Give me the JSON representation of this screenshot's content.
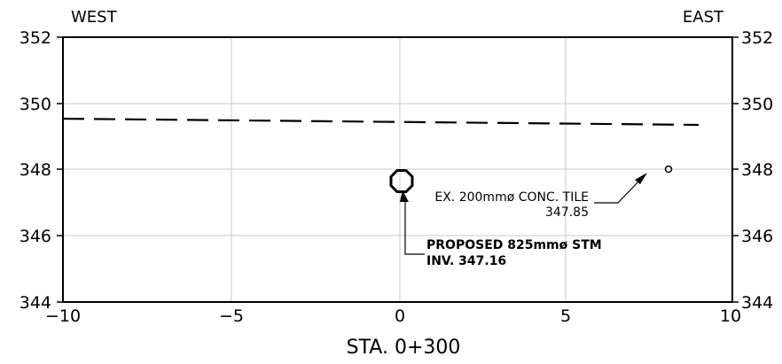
{
  "labels": {
    "west": "WEST",
    "east": "EAST",
    "station": "STA. 0+300"
  },
  "axes": {
    "x_ticks": [
      "−10",
      "−5",
      "0",
      "5",
      "10"
    ],
    "y_ticks_left": [
      "352",
      "350",
      "348",
      "346",
      "344"
    ],
    "y_ticks_right": [
      "352",
      "350",
      "348",
      "346",
      "344"
    ]
  },
  "annotations": {
    "existing_tile_line1": "EX. 200mmø CONC. TILE",
    "existing_tile_line2": "347.85",
    "proposed_pipe_line1": "PROPOSED 825mmø STM",
    "proposed_pipe_line2": "INV. 347.16"
  },
  "chart_data": {
    "type": "scatter",
    "xlim": [
      -10,
      10
    ],
    "ylim": [
      344,
      352
    ],
    "x_ticks": [
      -10,
      -5,
      0,
      5,
      10
    ],
    "y_ticks": [
      344,
      346,
      348,
      350,
      352
    ],
    "grid": true,
    "ground_profile": {
      "style": "dashed",
      "x": [
        -10,
        9
      ],
      "y": [
        349.45,
        349.25
      ]
    },
    "features": [
      {
        "label": "EX. 200mmø CONC. TILE",
        "x": 8.0,
        "y": 347.95,
        "size_mm": 200
      },
      {
        "label": "PROPOSED 825mmø STM",
        "x": 0.0,
        "y": 347.6,
        "size_mm": 825
      }
    ],
    "colors": {
      "lines": "#000000",
      "grid": "#c8c8c8",
      "background": "#ffffff"
    }
  }
}
